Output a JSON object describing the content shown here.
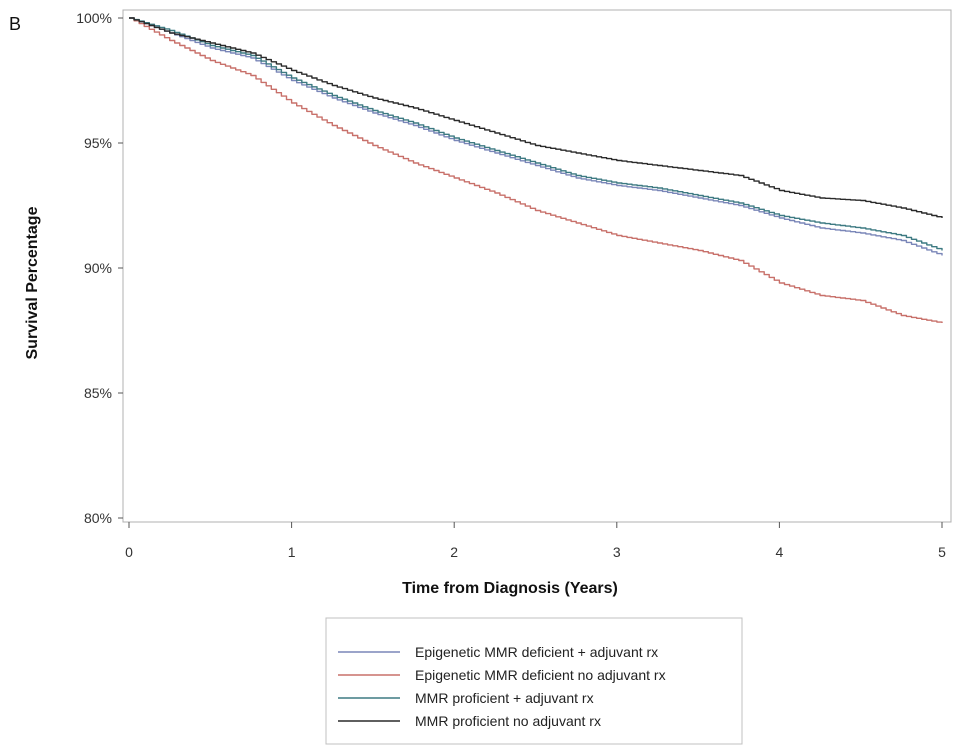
{
  "panel_label": "B",
  "chart_data": {
    "type": "line",
    "title": "",
    "xlabel": "Time from Diagnosis (Years)",
    "ylabel": "Survival Percentage",
    "xlim": [
      0,
      5
    ],
    "ylim": [
      80,
      100
    ],
    "x_ticks": [
      0,
      1,
      2,
      3,
      4,
      5
    ],
    "x_tick_labels": [
      "0",
      "1",
      "2",
      "3",
      "4",
      "5"
    ],
    "y_ticks": [
      80,
      85,
      90,
      95,
      100
    ],
    "y_tick_labels": [
      "80%",
      "85%",
      "90%",
      "95%",
      "100%"
    ],
    "grid": false,
    "legend_position": "bottom-center",
    "series": [
      {
        "name": "Epigenetic MMR deficient + adjuvant rx",
        "color": "#7a86b8",
        "x": [
          0,
          0.25,
          0.5,
          0.75,
          1.0,
          1.25,
          1.5,
          1.75,
          2.0,
          2.25,
          2.5,
          2.75,
          3.0,
          3.25,
          3.5,
          3.75,
          4.0,
          4.25,
          4.5,
          4.75,
          5.0
        ],
        "y": [
          100,
          99.4,
          98.8,
          98.4,
          97.5,
          96.8,
          96.2,
          95.7,
          95.1,
          94.6,
          94.1,
          93.6,
          93.3,
          93.1,
          92.8,
          92.5,
          92.0,
          91.6,
          91.4,
          91.1,
          90.5
        ]
      },
      {
        "name": "Epigenetic MMR deficient no adjuvant rx",
        "color": "#c8706a",
        "x": [
          0,
          0.25,
          0.5,
          0.75,
          1.0,
          1.25,
          1.5,
          1.75,
          2.0,
          2.25,
          2.5,
          2.75,
          3.0,
          3.25,
          3.5,
          3.75,
          4.0,
          4.25,
          4.5,
          4.75,
          5.0
        ],
        "y": [
          100,
          99.1,
          98.3,
          97.7,
          96.6,
          95.7,
          94.9,
          94.2,
          93.6,
          93.0,
          92.3,
          91.8,
          91.3,
          91.0,
          90.7,
          90.3,
          89.4,
          88.9,
          88.7,
          88.1,
          87.8
        ]
      },
      {
        "name": "MMR proficient + adjuvant rx",
        "color": "#3d7a82",
        "x": [
          0,
          0.25,
          0.5,
          0.75,
          1.0,
          1.25,
          1.5,
          1.75,
          2.0,
          2.25,
          2.5,
          2.75,
          3.0,
          3.25,
          3.5,
          3.75,
          4.0,
          4.25,
          4.5,
          4.75,
          5.0
        ],
        "y": [
          100,
          99.5,
          98.9,
          98.5,
          97.6,
          96.9,
          96.3,
          95.8,
          95.2,
          94.7,
          94.2,
          93.7,
          93.4,
          93.2,
          92.9,
          92.6,
          92.1,
          91.8,
          91.6,
          91.3,
          90.7
        ]
      },
      {
        "name": "MMR proficient no adjuvant rx",
        "color": "#2a2a2a",
        "x": [
          0,
          0.25,
          0.5,
          0.75,
          1.0,
          1.25,
          1.5,
          1.75,
          2.0,
          2.25,
          2.5,
          2.75,
          3.0,
          3.25,
          3.5,
          3.75,
          4.0,
          4.25,
          4.5,
          4.75,
          5.0
        ],
        "y": [
          100,
          99.4,
          99.0,
          98.6,
          97.9,
          97.3,
          96.8,
          96.4,
          95.9,
          95.4,
          94.9,
          94.6,
          94.3,
          94.1,
          93.9,
          93.7,
          93.1,
          92.8,
          92.7,
          92.4,
          92.0
        ]
      }
    ]
  }
}
